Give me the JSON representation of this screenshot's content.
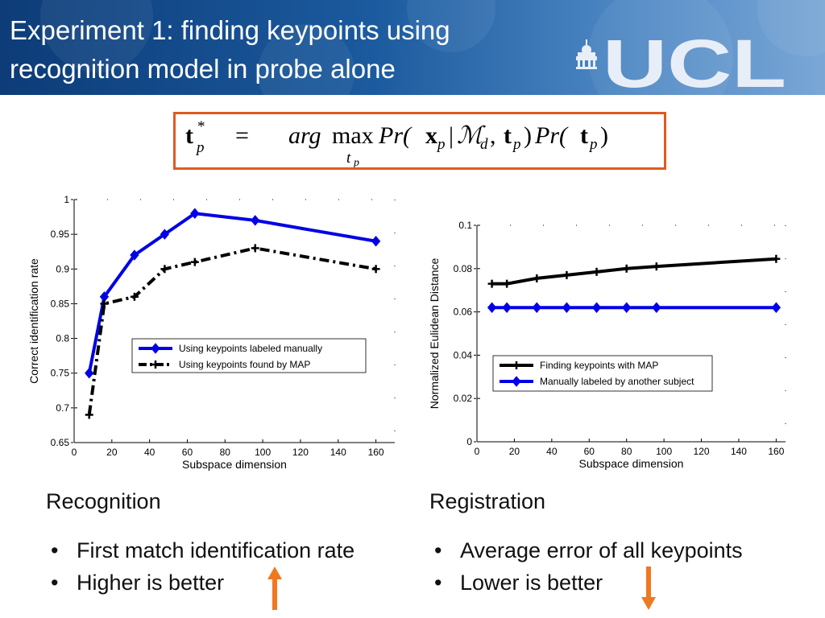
{
  "slide": {
    "title_lines": [
      "Experiment 1: finding keypoints using",
      "recognition model in probe alone"
    ],
    "logo_text": "UCL"
  },
  "formula": {
    "lhs_base": "t",
    "lhs_sup": "*",
    "lhs_sub": "p",
    "equals": "=",
    "arg": "arg",
    "max": "max",
    "max_sub_base": "t",
    "max_sub_sub": "p",
    "term1_open": "Pr(",
    "x": "x",
    "x_sub": "p",
    "bar": "|",
    "M": "ℳ",
    "M_sub": "d",
    "comma": ", ",
    "t": "t",
    "t_sub": "p",
    "term1_close": ")",
    "term2_open": "Pr(",
    "t2": "t",
    "t2_sub": "p",
    "term2_close": ")"
  },
  "colors": {
    "accent_orange": "#e05a20",
    "series_blue": "#0000e6",
    "series_black": "#000000",
    "arrow_orange": "#f07820"
  },
  "chart_data": [
    {
      "type": "line",
      "xlabel": "Subspace dimension",
      "ylabel": "Correct identification rate",
      "xlim": [
        0,
        170
      ],
      "ylim": [
        0.65,
        1.0
      ],
      "xticks": [
        0,
        20,
        40,
        60,
        80,
        100,
        120,
        140,
        160
      ],
      "yticks": [
        0.65,
        0.7,
        0.75,
        0.8,
        0.85,
        0.9,
        0.95,
        1
      ],
      "ytick_labels": [
        "0.65",
        "0.7",
        "0.75",
        "0.8",
        "0.85",
        "0.9",
        "0.95",
        "1"
      ],
      "legend_position": "center-right",
      "series": [
        {
          "name": "Using keypoints labeled manually",
          "color": "#0000e6",
          "style": "solid",
          "marker": "diamond",
          "x": [
            8,
            16,
            32,
            48,
            64,
            96,
            160
          ],
          "y": [
            0.75,
            0.86,
            0.92,
            0.95,
            0.98,
            0.97,
            0.94
          ]
        },
        {
          "name": "Using keypoints found by MAP",
          "color": "#000000",
          "style": "dashdot",
          "marker": "plus",
          "x": [
            8,
            16,
            32,
            48,
            64,
            96,
            160
          ],
          "y": [
            0.69,
            0.85,
            0.86,
            0.9,
            0.91,
            0.93,
            0.9
          ]
        }
      ]
    },
    {
      "type": "line",
      "xlabel": "Subspace dimension",
      "ylabel": "Normalized Eulidean Distance",
      "xlim": [
        0,
        165
      ],
      "ylim": [
        0,
        0.1
      ],
      "xticks": [
        0,
        20,
        40,
        60,
        80,
        100,
        120,
        140,
        160
      ],
      "yticks": [
        0,
        0.02,
        0.04,
        0.06,
        0.08,
        0.1
      ],
      "ytick_labels": [
        "0",
        "0.02",
        "0.04",
        "0.06",
        "0.08",
        "0.1"
      ],
      "legend_position": "center-right",
      "series": [
        {
          "name": "Finding keypoints with MAP",
          "color": "#000000",
          "style": "solid",
          "marker": "plus",
          "x": [
            8,
            16,
            32,
            48,
            64,
            80,
            96,
            160
          ],
          "y": [
            0.073,
            0.073,
            0.0755,
            0.077,
            0.0785,
            0.08,
            0.081,
            0.0845
          ]
        },
        {
          "name": "Manually labeled by another subject",
          "color": "#0000e6",
          "style": "solid",
          "marker": "diamond",
          "x": [
            8,
            16,
            32,
            48,
            64,
            80,
            96,
            160
          ],
          "y": [
            0.062,
            0.062,
            0.062,
            0.062,
            0.062,
            0.062,
            0.062,
            0.062
          ]
        }
      ]
    }
  ],
  "recognition": {
    "heading": "Recognition",
    "bullets": [
      "First match identification rate",
      "Higher is better"
    ],
    "arrow": "up-arrow"
  },
  "registration": {
    "heading": "Registration",
    "bullets": [
      "Average error of all keypoints",
      "Lower is better"
    ],
    "arrow": "down-arrow"
  }
}
